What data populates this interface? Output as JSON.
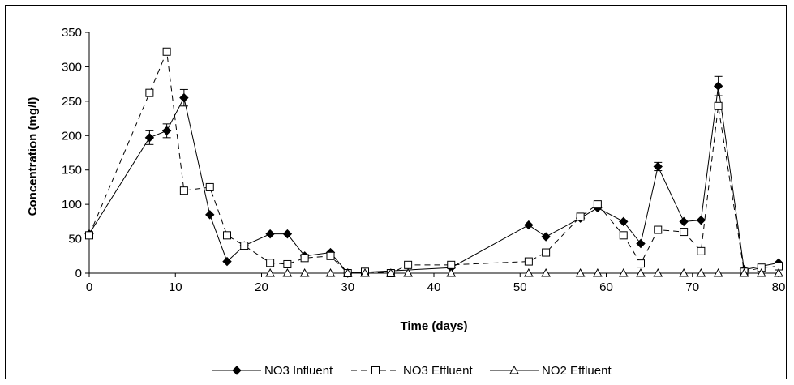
{
  "chart_data": {
    "type": "line",
    "title": "",
    "xlabel": "Time (days)",
    "ylabel": "Concentration (mg/l)",
    "xlim": [
      0,
      80
    ],
    "ylim": [
      0,
      350
    ],
    "xticks": [
      0,
      10,
      20,
      30,
      40,
      50,
      60,
      70,
      80
    ],
    "yticks": [
      0,
      50,
      100,
      150,
      200,
      250,
      300,
      350
    ],
    "grid": false,
    "legend_position": "bottom",
    "series": [
      {
        "name": "NO3 Influent",
        "color": "#000000",
        "line_style": "solid",
        "marker": "filled-diamond",
        "x": [
          0,
          7,
          9,
          11,
          14,
          16,
          18,
          21,
          23,
          25,
          28,
          30,
          42,
          51,
          53,
          57,
          59,
          62,
          64,
          66,
          69,
          71,
          73,
          76,
          80
        ],
        "y": [
          57,
          197,
          207,
          255,
          85,
          17,
          40,
          57,
          57,
          25,
          30,
          0,
          8,
          70,
          53,
          80,
          95,
          75,
          43,
          155,
          75,
          77,
          272,
          5,
          15
        ],
        "error": [
          0,
          10,
          10,
          12,
          0,
          0,
          0,
          0,
          0,
          0,
          0,
          0,
          0,
          0,
          0,
          0,
          0,
          0,
          0,
          6,
          0,
          0,
          14,
          0,
          0
        ]
      },
      {
        "name": "NO3 Effluent",
        "color": "#000000",
        "line_style": "dashed",
        "marker": "open-square",
        "x": [
          0,
          7,
          9,
          11,
          14,
          16,
          18,
          21,
          23,
          25,
          28,
          30,
          32,
          35,
          37,
          42,
          51,
          53,
          57,
          59,
          62,
          64,
          66,
          69,
          71,
          73,
          76,
          78,
          80
        ],
        "y": [
          55,
          262,
          322,
          120,
          125,
          55,
          40,
          15,
          13,
          22,
          25,
          0,
          2,
          0,
          12,
          12,
          17,
          30,
          82,
          100,
          55,
          14,
          63,
          60,
          32,
          243,
          2,
          8,
          10
        ]
      },
      {
        "name": "NO2 Effluent",
        "color": "#000000",
        "line_style": "solid",
        "marker": "open-triangle",
        "x": [
          21,
          23,
          25,
          28,
          30,
          32,
          35,
          37,
          42,
          51,
          53,
          57,
          59,
          62,
          64,
          66,
          69,
          71,
          73,
          76,
          78,
          80
        ],
        "y": [
          0,
          0,
          0,
          0,
          0,
          0,
          0,
          0,
          0,
          0,
          0,
          0,
          0,
          0,
          0,
          0,
          0,
          0,
          0,
          0,
          0,
          0
        ]
      }
    ]
  }
}
